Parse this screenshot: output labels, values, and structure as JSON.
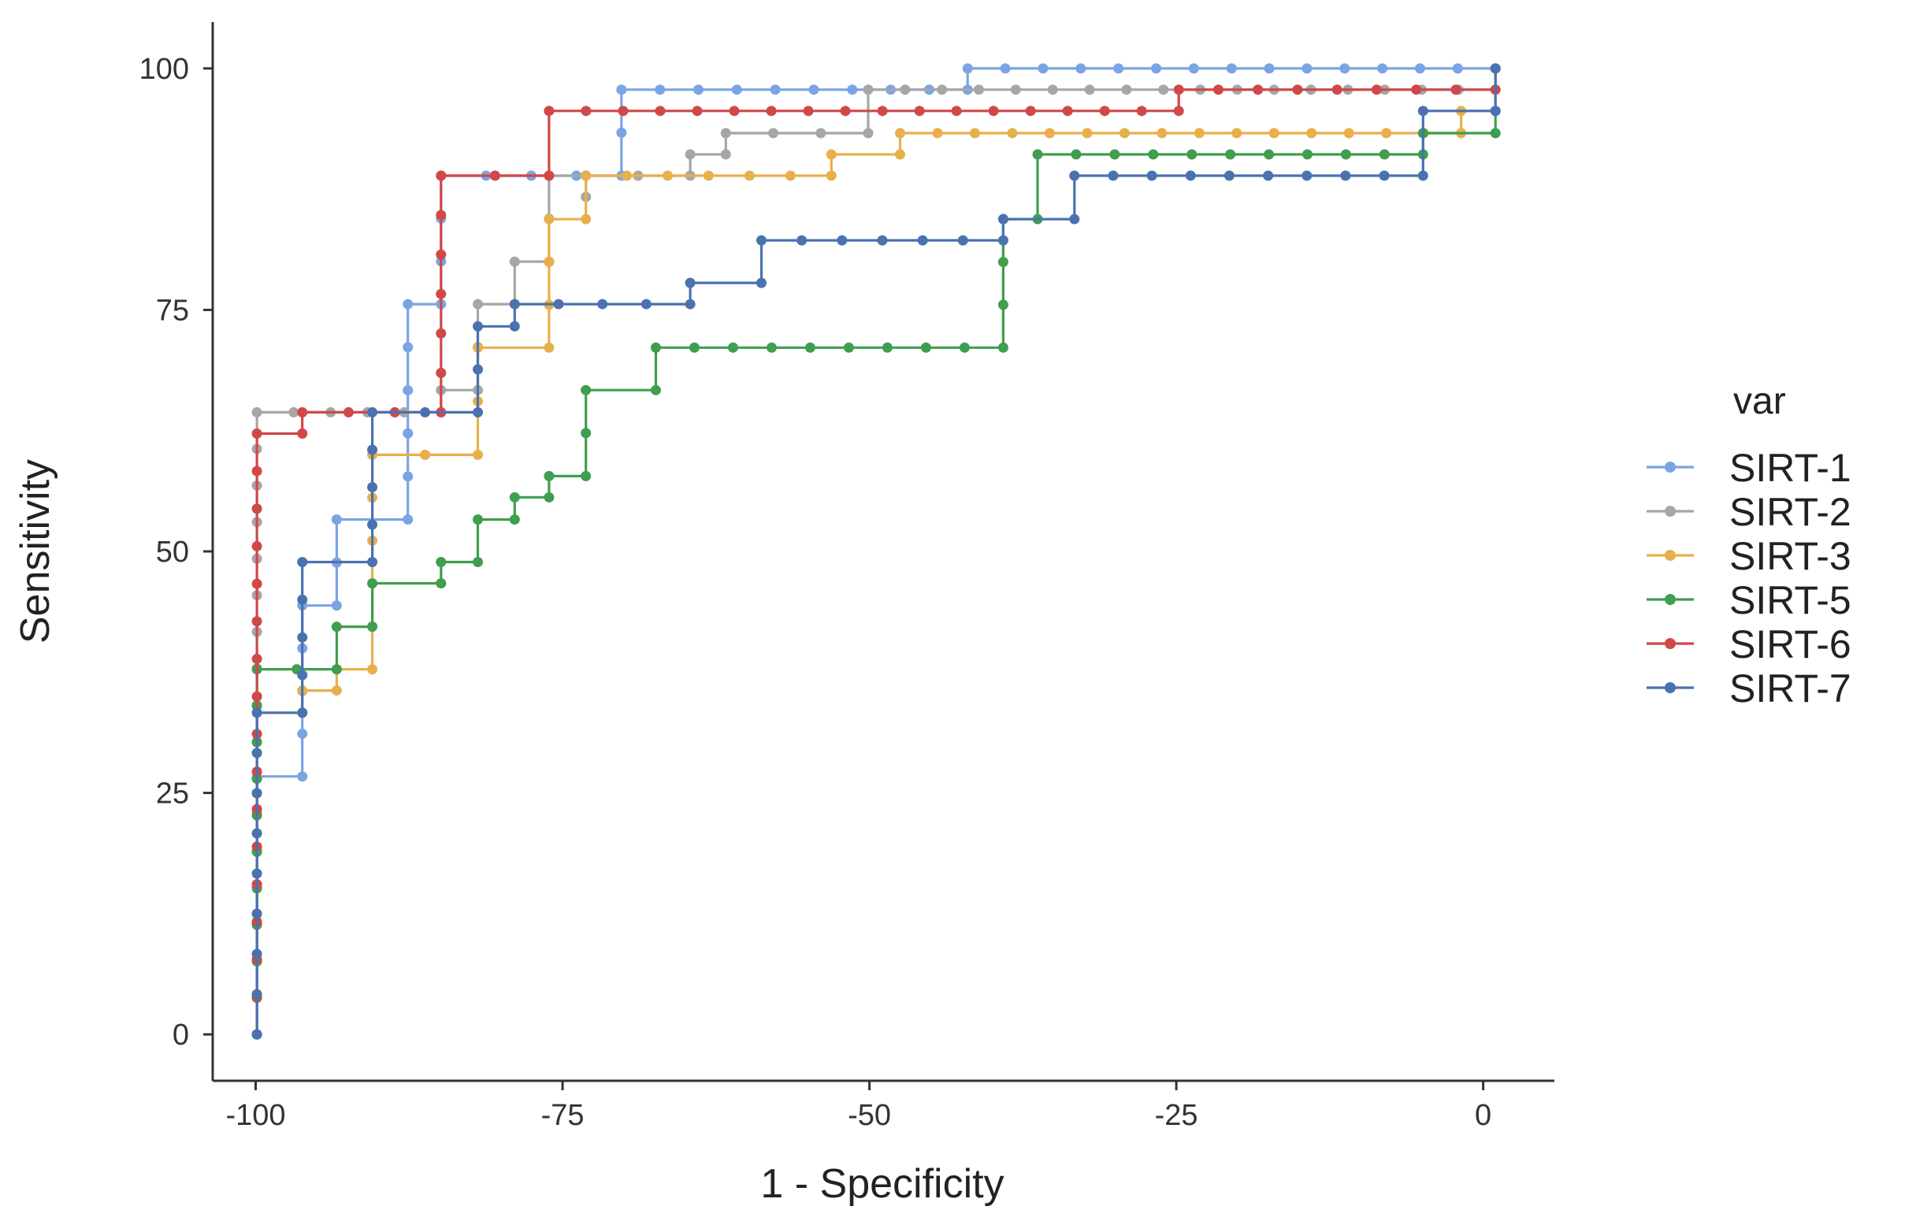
{
  "chart_data": {
    "type": "line",
    "title": "",
    "xlabel": "1 - Specificity",
    "ylabel": "Sensitivity",
    "xlim": [
      -103.5,
      5.8
    ],
    "ylim": [
      -4.8,
      104.8
    ],
    "xticks": [
      -100,
      -75,
      -50,
      -25,
      0
    ],
    "yticks": [
      0,
      25,
      50,
      75,
      100
    ],
    "xtick_labels": [
      "-100",
      "-75",
      "-50",
      "-25",
      "0"
    ],
    "ytick_labels": [
      "0",
      "25",
      "50",
      "75",
      "100"
    ],
    "grid": false,
    "legend": {
      "title": "var",
      "position": "right",
      "labels": [
        "SIRT-1",
        "SIRT-2",
        "SIRT-3",
        "SIRT-5",
        "SIRT-6",
        "SIRT-7"
      ]
    },
    "series": [
      {
        "name": "SIRT-1",
        "color": "#7ba4e4",
        "points": [
          [
            -99.9,
            0
          ],
          [
            -99.9,
            26.7
          ],
          [
            -96.2,
            26.7
          ],
          [
            -96.2,
            44.4
          ],
          [
            -93.4,
            44.4
          ],
          [
            -93.4,
            53.3
          ],
          [
            -87.6,
            53.3
          ],
          [
            -87.6,
            75.6
          ],
          [
            -84.9,
            75.6
          ],
          [
            -84.9,
            88.9
          ],
          [
            -70.2,
            88.9
          ],
          [
            -70.2,
            97.8
          ],
          [
            -42,
            97.8
          ],
          [
            -42,
            100
          ],
          [
            1,
            100
          ]
        ]
      },
      {
        "name": "SIRT-2",
        "color": "#a6a6a6",
        "points": [
          [
            -99.9,
            0
          ],
          [
            -99.9,
            64.4
          ],
          [
            -84.9,
            64.4
          ],
          [
            -84.9,
            66.7
          ],
          [
            -81.9,
            66.7
          ],
          [
            -81.9,
            75.6
          ],
          [
            -78.9,
            75.6
          ],
          [
            -78.9,
            80
          ],
          [
            -76.1,
            80
          ],
          [
            -76.1,
            88.9
          ],
          [
            -73.1,
            88.9
          ],
          [
            -73.1,
            86.7
          ],
          [
            -73.1,
            88.9
          ],
          [
            -64.6,
            88.9
          ],
          [
            -64.6,
            91.1
          ],
          [
            -61.7,
            91.1
          ],
          [
            -61.7,
            93.3
          ],
          [
            -50.1,
            93.3
          ],
          [
            -50.1,
            97.8
          ],
          [
            1,
            97.8
          ],
          [
            1,
            100
          ]
        ]
      },
      {
        "name": "SIRT-3",
        "color": "#e8b04b",
        "points": [
          [
            -99.9,
            0
          ],
          [
            -99.9,
            33.3
          ],
          [
            -96.2,
            33.3
          ],
          [
            -96.2,
            35.6
          ],
          [
            -93.4,
            35.6
          ],
          [
            -93.4,
            37.8
          ],
          [
            -90.5,
            37.8
          ],
          [
            -90.5,
            60
          ],
          [
            -81.9,
            60
          ],
          [
            -81.9,
            71.1
          ],
          [
            -76.1,
            71.1
          ],
          [
            -76.1,
            84.4
          ],
          [
            -73.1,
            84.4
          ],
          [
            -73.1,
            88.9
          ],
          [
            -53.1,
            88.9
          ],
          [
            -53.1,
            91.1
          ],
          [
            -47.5,
            91.1
          ],
          [
            -47.5,
            93.3
          ],
          [
            -1.8,
            93.3
          ],
          [
            -1.8,
            95.6
          ],
          [
            1,
            95.6
          ],
          [
            1,
            97.8
          ]
        ]
      },
      {
        "name": "SIRT-5",
        "color": "#3f9e4f",
        "points": [
          [
            -99.9,
            0
          ],
          [
            -99.9,
            37.8
          ],
          [
            -93.4,
            37.8
          ],
          [
            -93.4,
            42.2
          ],
          [
            -90.5,
            42.2
          ],
          [
            -90.5,
            46.7
          ],
          [
            -84.9,
            46.7
          ],
          [
            -84.9,
            48.9
          ],
          [
            -81.9,
            48.9
          ],
          [
            -81.9,
            53.3
          ],
          [
            -78.9,
            53.3
          ],
          [
            -78.9,
            55.6
          ],
          [
            -76.1,
            55.6
          ],
          [
            -76.1,
            57.8
          ],
          [
            -73.1,
            57.8
          ],
          [
            -73.1,
            66.7
          ],
          [
            -67.4,
            66.7
          ],
          [
            -67.4,
            71.1
          ],
          [
            -39.1,
            71.1
          ],
          [
            -39.1,
            84.4
          ],
          [
            -36.3,
            84.4
          ],
          [
            -36.3,
            91.1
          ],
          [
            -4.9,
            91.1
          ],
          [
            -4.9,
            93.3
          ],
          [
            1,
            93.3
          ],
          [
            1,
            95.6
          ]
        ]
      },
      {
        "name": "SIRT-6",
        "color": "#d04848",
        "points": [
          [
            -99.9,
            0
          ],
          [
            -99.9,
            62.2
          ],
          [
            -96.2,
            62.2
          ],
          [
            -96.2,
            64.4
          ],
          [
            -84.9,
            64.4
          ],
          [
            -84.9,
            88.9
          ],
          [
            -76.1,
            88.9
          ],
          [
            -76.1,
            95.6
          ],
          [
            -24.8,
            95.6
          ],
          [
            -24.8,
            97.8
          ],
          [
            1,
            97.8
          ],
          [
            1,
            100
          ]
        ]
      },
      {
        "name": "SIRT-7",
        "color": "#4a72b0",
        "points": [
          [
            -99.9,
            0
          ],
          [
            -99.9,
            33.3
          ],
          [
            -96.2,
            33.3
          ],
          [
            -96.2,
            48.9
          ],
          [
            -90.5,
            48.9
          ],
          [
            -90.5,
            64.4
          ],
          [
            -81.9,
            64.4
          ],
          [
            -81.9,
            73.3
          ],
          [
            -78.9,
            73.3
          ],
          [
            -78.9,
            75.6
          ],
          [
            -64.6,
            75.6
          ],
          [
            -64.6,
            77.8
          ],
          [
            -58.8,
            77.8
          ],
          [
            -58.8,
            82.2
          ],
          [
            -39.1,
            82.2
          ],
          [
            -39.1,
            84.4
          ],
          [
            -33.3,
            84.4
          ],
          [
            -33.3,
            88.9
          ],
          [
            -4.9,
            88.9
          ],
          [
            -4.9,
            95.6
          ],
          [
            1,
            95.6
          ],
          [
            1,
            100
          ]
        ]
      }
    ]
  }
}
